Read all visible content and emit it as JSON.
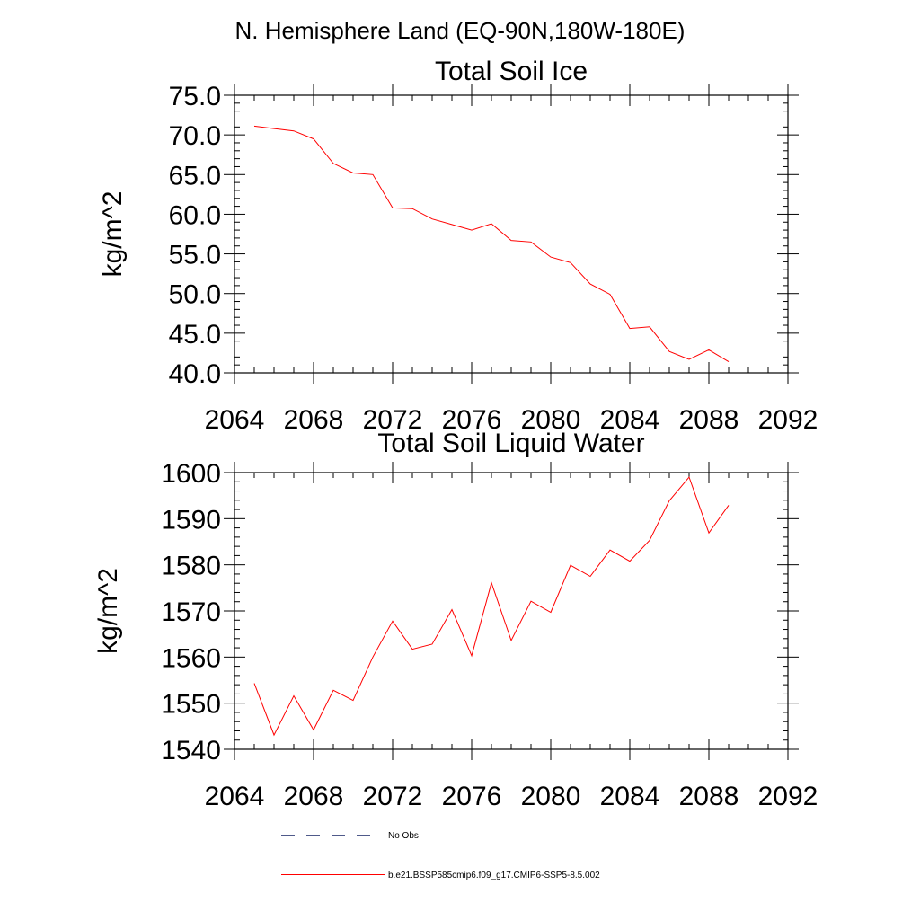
{
  "page_title": "N. Hemisphere Land (EQ-90N,180W-180E)",
  "chart_data": [
    {
      "type": "line",
      "title": "Total Soil Ice",
      "xlabel": "",
      "ylabel": "kg/m^2",
      "xlim": [
        2064,
        2092
      ],
      "ylim": [
        40,
        75
      ],
      "x_ticks": [
        "2064",
        "2068",
        "2072",
        "2076",
        "2080",
        "2084",
        "2088",
        "2092"
      ],
      "y_ticks": [
        "40.0",
        "45.0",
        "50.0",
        "55.0",
        "60.0",
        "65.0",
        "70.0",
        "75.0"
      ],
      "series": [
        {
          "name": "b.e21.BSSP585cmip6.f09_g17.CMIP6-SSP5-8.5.002",
          "color": "#ff0000",
          "x": [
            2065,
            2066,
            2067,
            2068,
            2069,
            2070,
            2071,
            2072,
            2073,
            2074,
            2075,
            2076,
            2077,
            2078,
            2079,
            2080,
            2081,
            2082,
            2083,
            2084,
            2085,
            2086,
            2087,
            2088,
            2089
          ],
          "y": [
            71.1,
            70.8,
            70.5,
            69.5,
            66.4,
            65.2,
            65.0,
            60.8,
            60.7,
            59.4,
            58.7,
            58.0,
            58.8,
            56.7,
            56.5,
            54.6,
            53.9,
            51.2,
            49.9,
            45.6,
            45.8,
            42.7,
            41.7,
            42.9,
            41.4
          ]
        }
      ]
    },
    {
      "type": "line",
      "title": "Total Soil Liquid Water",
      "xlabel": "",
      "ylabel": "kg/m^2",
      "xlim": [
        2064,
        2092
      ],
      "ylim": [
        1540,
        1600
      ],
      "x_ticks": [
        "2064",
        "2068",
        "2072",
        "2076",
        "2080",
        "2084",
        "2088",
        "2092"
      ],
      "y_ticks": [
        "1540",
        "1550",
        "1560",
        "1570",
        "1580",
        "1590",
        "1600"
      ],
      "series": [
        {
          "name": "b.e21.BSSP585cmip6.f09_g17.CMIP6-SSP5-8.5.002",
          "color": "#ff0000",
          "x": [
            2065,
            2066,
            2067,
            2068,
            2069,
            2070,
            2071,
            2072,
            2073,
            2074,
            2075,
            2076,
            2077,
            2078,
            2079,
            2080,
            2081,
            2082,
            2083,
            2084,
            2085,
            2086,
            2087,
            2088,
            2089
          ],
          "y": [
            1554.3,
            1543.1,
            1551.6,
            1544.2,
            1552.8,
            1550.6,
            1560.0,
            1567.8,
            1561.7,
            1562.8,
            1570.3,
            1560.3,
            1576.1,
            1563.6,
            1572.1,
            1569.7,
            1579.9,
            1577.5,
            1583.2,
            1580.8,
            1585.3,
            1593.9,
            1599.0,
            1586.9,
            1592.9
          ]
        }
      ]
    }
  ],
  "legend": [
    {
      "label": "No Obs",
      "style": "dashed",
      "color": "#4f5a8a"
    },
    {
      "label": "b.e21.BSSP585cmip6.f09_g17.CMIP6-SSP5-8.5.002",
      "style": "solid",
      "color": "#ff0000"
    }
  ]
}
